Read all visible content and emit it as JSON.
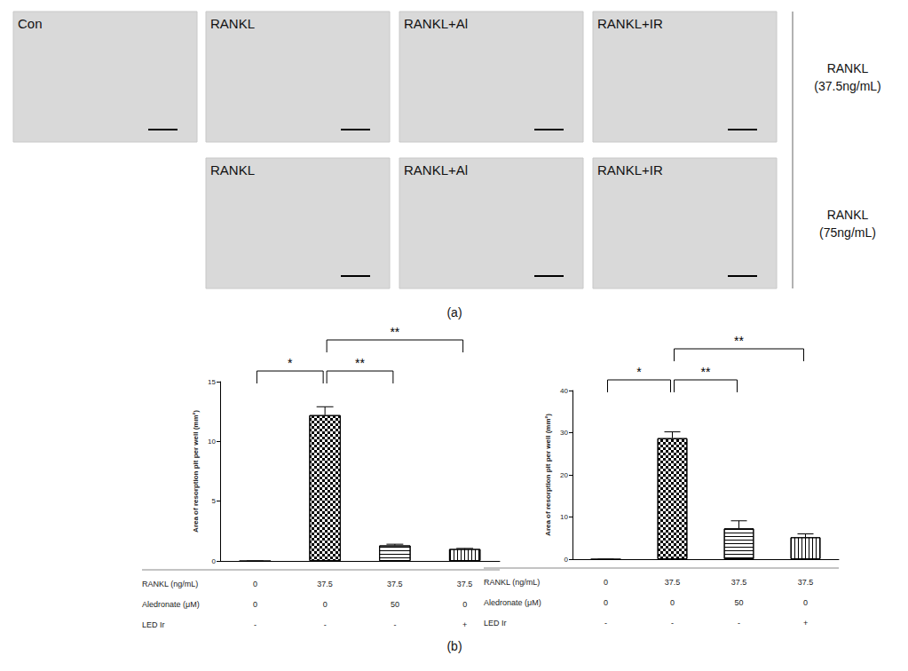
{
  "panel_a": {
    "label": "(a)",
    "rows": [
      {
        "condition": [
          "RANKL",
          "(37.5ng/mL)"
        ],
        "images": [
          "Con",
          "RANKL",
          "RANKL+Al",
          "RANKL+IR"
        ]
      },
      {
        "condition": [
          "RANKL",
          "(75ng/mL)"
        ],
        "images": [
          null,
          "RANKL",
          "RANKL+Al",
          "RANKL+IR"
        ]
      }
    ]
  },
  "panel_b_label": "(b)",
  "chart_data": [
    {
      "type": "bar",
      "y_label": "Area of resorption pit per well (mm²)",
      "x_table": [
        {
          "label": "RANKL (ng/mL)",
          "values": [
            "0",
            "37.5",
            "37.5",
            "37.5"
          ]
        },
        {
          "label": "Aledronate (μM)",
          "values": [
            "0",
            "0",
            "50",
            "0"
          ]
        },
        {
          "label": "LED Ir",
          "values": [
            "-",
            "-",
            "-",
            "+"
          ]
        }
      ],
      "values": [
        0,
        12.2,
        1.3,
        1.0
      ],
      "errors": [
        0,
        0.7,
        0.1,
        0.05
      ],
      "color": "#ffffff",
      "ylim": [
        0,
        15
      ],
      "yticks": [
        0,
        5,
        10,
        15
      ],
      "grid": false,
      "annotations": [
        {
          "from": 0,
          "to": 1,
          "text": "*"
        },
        {
          "from": 1,
          "to": 2,
          "text": "**"
        },
        {
          "from": 1,
          "to": 3,
          "text": "**"
        }
      ]
    },
    {
      "type": "bar",
      "y_label": "Area of resorption pit per well (mm²)",
      "x_table": [
        {
          "label": "RANKL (ng/mL)",
          "values": [
            "0",
            "37.5",
            "37.5",
            "37.5"
          ]
        },
        {
          "label": "Aledronate (μM)",
          "values": [
            "0",
            "0",
            "50",
            "0"
          ]
        },
        {
          "label": "LED Ir",
          "values": [
            "-",
            "-",
            "-",
            "+"
          ]
        }
      ],
      "values": [
        0,
        28.7,
        7.3,
        5.2
      ],
      "errors": [
        0,
        1.5,
        1.8,
        0.8
      ],
      "color": "#ffffff",
      "ylim": [
        0,
        40
      ],
      "yticks": [
        0,
        10,
        20,
        30,
        40
      ],
      "grid": false,
      "annotations": [
        {
          "from": 0,
          "to": 1,
          "text": "*"
        },
        {
          "from": 1,
          "to": 2,
          "text": "**"
        },
        {
          "from": 1,
          "to": 3,
          "text": "**"
        }
      ]
    }
  ]
}
